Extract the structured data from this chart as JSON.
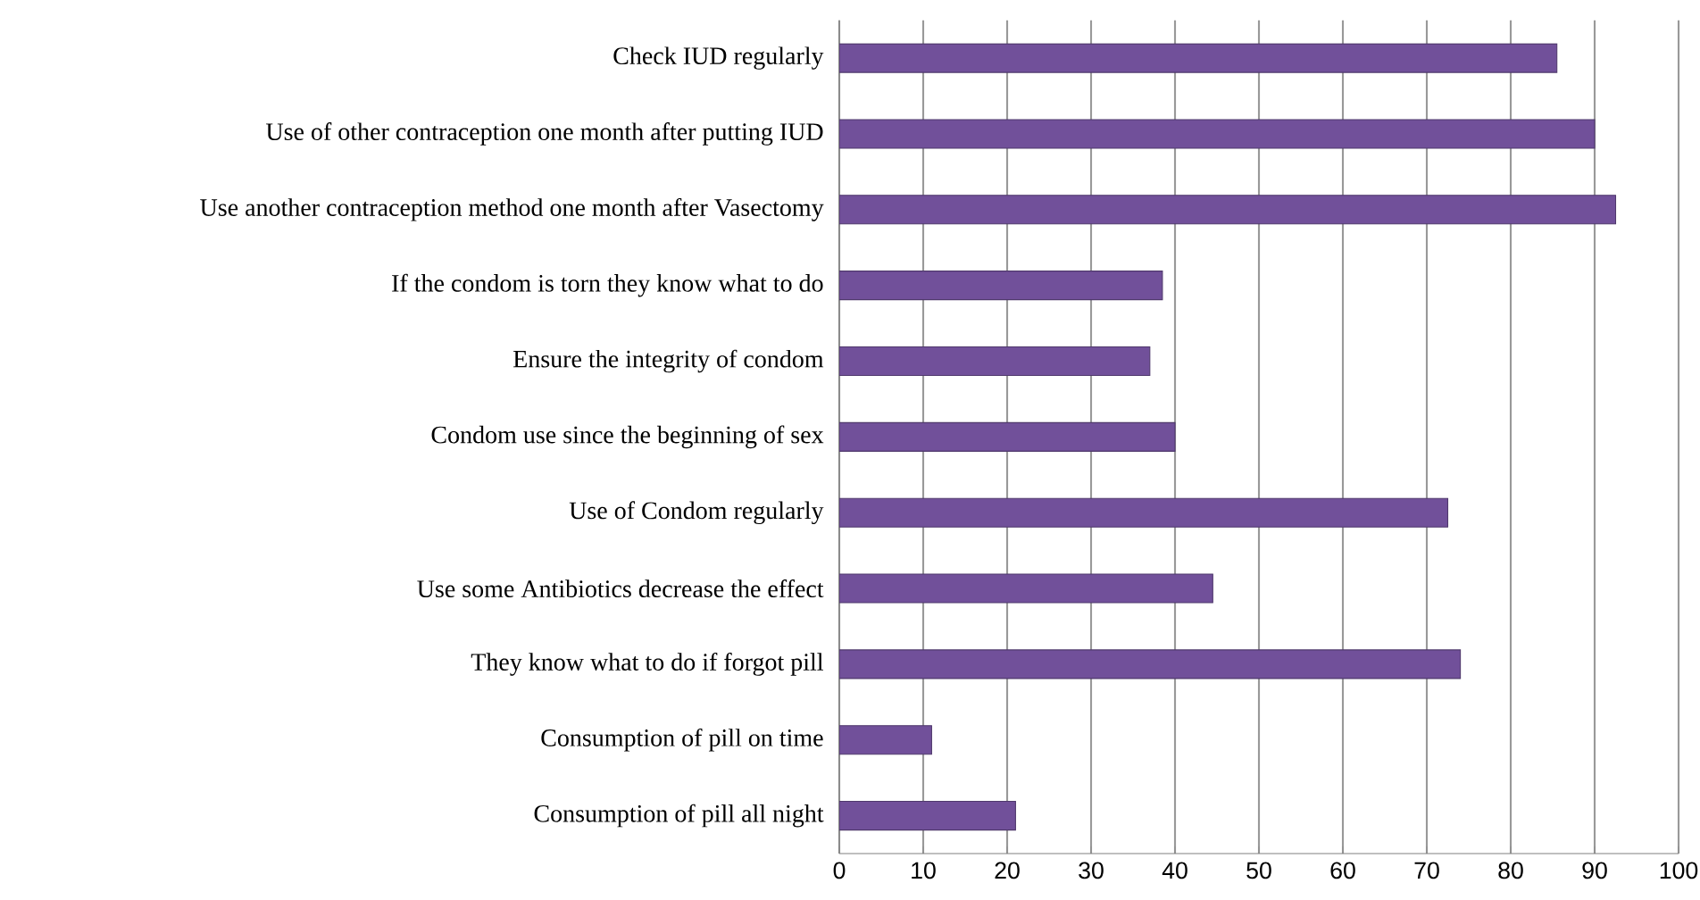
{
  "chart_data": {
    "type": "bar",
    "orientation": "horizontal",
    "categories": [
      "Check IUD regularly",
      "Use of other contraception one month after putting IUD",
      "Use another contraception method one month after Vasectomy",
      "If the condom is torn they know what to do",
      "Ensure the integrity of condom",
      "Condom use since the beginning of sex",
      "Use of Condom regularly",
      "Use some Antibiotics decrease the effect",
      "They know what to do if forgot pill",
      "Consumption of pill on time",
      "Consumption of pill all night"
    ],
    "values": [
      85.5,
      90,
      92.5,
      38.5,
      37,
      40,
      72.5,
      44.5,
      74,
      11,
      21
    ],
    "color": "#71509a",
    "xlim": [
      0,
      100
    ],
    "xticks": [
      0,
      10,
      20,
      30,
      40,
      50,
      60,
      70,
      80,
      90,
      100
    ],
    "grid": "x"
  }
}
